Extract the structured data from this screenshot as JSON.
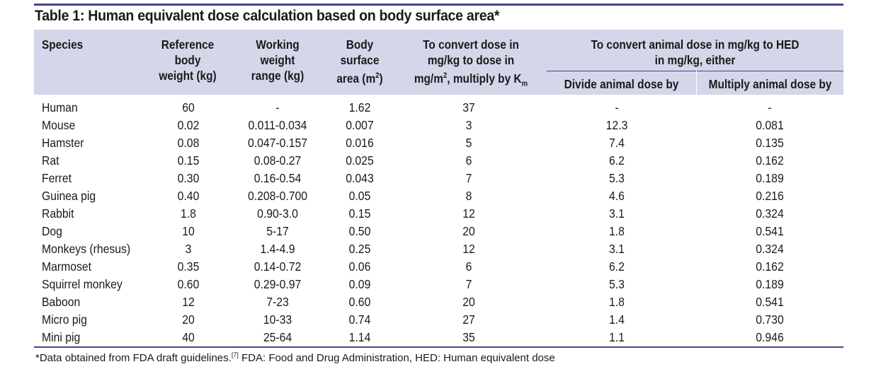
{
  "title": "Table 1: Human equivalent dose calculation based on body surface area*",
  "headers": {
    "species": "Species",
    "ref_weight": [
      "Reference",
      "body",
      "weight (kg)"
    ],
    "working_range": [
      "Working",
      "weight",
      "range (kg)"
    ],
    "bsa": [
      "Body",
      "surface",
      "area (m",
      "2",
      ")"
    ],
    "convert": [
      "To convert dose in",
      "mg/kg to dose in",
      "mg/m",
      "2",
      ", multiply by K",
      "m"
    ],
    "hed_group": [
      "To convert animal dose in mg/kg to HED",
      "in mg/kg, either"
    ],
    "divide": "Divide animal dose by",
    "multiply": "Multiply animal dose by"
  },
  "rows": [
    [
      "Human",
      "60",
      "-",
      "1.62",
      "37",
      "-",
      "-"
    ],
    [
      "Mouse",
      "0.02",
      "0.011-0.034",
      "0.007",
      "3",
      "12.3",
      "0.081"
    ],
    [
      "Hamster",
      "0.08",
      "0.047-0.157",
      "0.016",
      "5",
      "7.4",
      "0.135"
    ],
    [
      "Rat",
      "0.15",
      "0.08-0.27",
      "0.025",
      "6",
      "6.2",
      "0.162"
    ],
    [
      "Ferret",
      "0.30",
      "0.16-0.54",
      "0.043",
      "7",
      "5.3",
      "0.189"
    ],
    [
      "Guinea pig",
      "0.40",
      "0.208-0.700",
      "0.05",
      "8",
      "4.6",
      "0.216"
    ],
    [
      "Rabbit",
      "1.8",
      "0.90-3.0",
      "0.15",
      "12",
      "3.1",
      "0.324"
    ],
    [
      "Dog",
      "10",
      "5-17",
      "0.50",
      "20",
      "1.8",
      "0.541"
    ],
    [
      "Monkeys (rhesus)",
      "3",
      "1.4-4.9",
      "0.25",
      "12",
      "3.1",
      "0.324"
    ],
    [
      "Marmoset",
      "0.35",
      "0.14-0.72",
      "0.06",
      "6",
      "6.2",
      "0.162"
    ],
    [
      "Squirrel monkey",
      "0.60",
      "0.29-0.97",
      "0.09",
      "7",
      "5.3",
      "0.189"
    ],
    [
      "Baboon",
      "12",
      "7-23",
      "0.60",
      "20",
      "1.8",
      "0.541"
    ],
    [
      "Micro pig",
      "20",
      "10-33",
      "0.74",
      "27",
      "1.4",
      "0.730"
    ],
    [
      "Mini pig",
      "40",
      "25-64",
      "1.14",
      "35",
      "1.1",
      "0.946"
    ]
  ],
  "footnote": {
    "text_before": "*Data obtained from FDA draft guidelines.",
    "ref": "[7]",
    "text_after": " FDA: Food and Drug Administration, HED: Human equivalent dose"
  },
  "colors": {
    "accent": "#3f478f",
    "header_bg": "#d6d6ea"
  }
}
